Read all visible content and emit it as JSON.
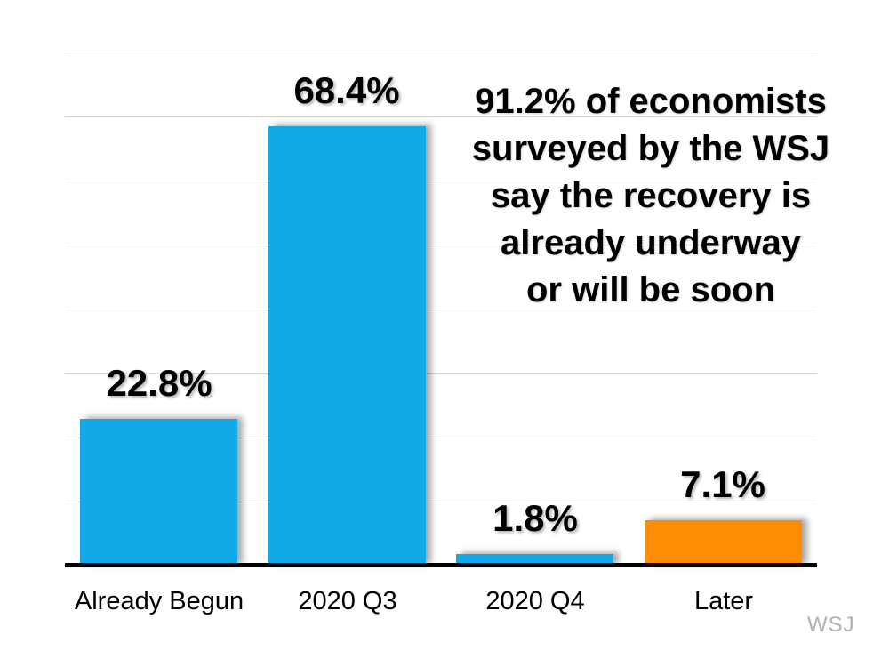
{
  "chart_data": {
    "type": "bar",
    "title": "",
    "xlabel": "",
    "ylabel": "",
    "categories": [
      "Already Begun",
      "2020 Q3",
      "2020 Q4",
      "Later"
    ],
    "values": [
      22.8,
      68.4,
      1.8,
      7.1
    ],
    "value_labels": [
      "22.8%",
      "68.4%",
      "1.8%",
      "7.1%"
    ],
    "bar_colors": [
      "#12a9e9",
      "#12a9e9",
      "#12a9e9",
      "#fe8d05"
    ],
    "ylim": [
      0,
      80
    ],
    "gridline_step": 10,
    "grid": true,
    "legend": "none",
    "annotation": "91.2% of economists\nsurveyed by the WSJ\nsay the recovery is\nalready underway\nor will be soon",
    "source_label": "WSJ",
    "colors": {
      "bar_blue": "#12a9e9",
      "bar_orange": "#fe8d05",
      "gridline": "#d9d9d9",
      "axis": "#000000",
      "source_gray": "#b2b2b2",
      "background": "#ffffff"
    }
  }
}
